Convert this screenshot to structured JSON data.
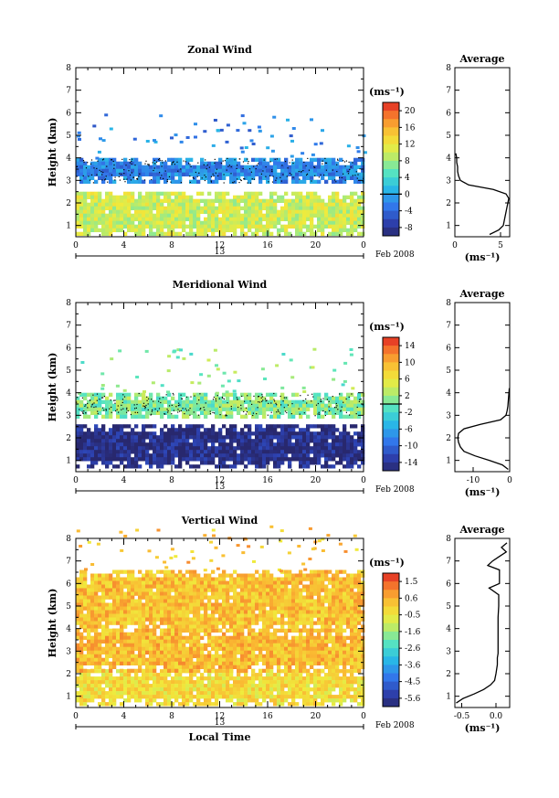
{
  "chart_data": [
    {
      "type": "heatmap",
      "title": "Zonal Wind",
      "xlabel": "",
      "ylabel": "Height (km)",
      "xlim": [
        0,
        24
      ],
      "ylim": [
        0.5,
        8
      ],
      "x_ticks": [
        "0",
        "4",
        "8",
        "12",
        "16",
        "20",
        "0"
      ],
      "y_ticks": [
        "1",
        "2",
        "3",
        "4",
        "5",
        "6",
        "7",
        "8"
      ],
      "date_day": "13",
      "date_month": "Feb 2008",
      "colorbar": {
        "unit": "(ms⁻¹)",
        "range": [
          -10,
          22
        ],
        "ticks": [
          "20",
          "16",
          "12",
          "8",
          "4",
          "0",
          "-4",
          "-8"
        ],
        "zero_line": 0
      },
      "layers": [
        {
          "from_km": 0.7,
          "to_km": 2.5,
          "value_approx": 10
        },
        {
          "from_km": 2.9,
          "to_km": 4.0,
          "value_approx": -2
        }
      ],
      "average_profile": {
        "title": "Average",
        "xlabel": "(ms⁻¹)",
        "x_ticks": [
          "0",
          "5"
        ],
        "xlim": [
          0,
          6
        ],
        "height_km": [
          0.6,
          0.8,
          1.0,
          1.2,
          1.4,
          1.6,
          1.8,
          2.0,
          2.2,
          2.4,
          2.6,
          2.8,
          3.0,
          3.2,
          3.4,
          3.6,
          3.8,
          4.0,
          4.2
        ],
        "mean_wind": [
          3.8,
          4.8,
          5.3,
          5.4,
          5.5,
          5.6,
          5.7,
          5.8,
          5.9,
          5.6,
          4.2,
          1.5,
          0.6,
          0.4,
          0.3,
          0.3,
          0.2,
          0.2,
          0.1
        ]
      }
    },
    {
      "type": "heatmap",
      "title": "Meridional Wind",
      "xlabel": "",
      "ylabel": "Height (km)",
      "xlim": [
        0,
        24
      ],
      "ylim": [
        0.5,
        8
      ],
      "x_ticks": [
        "0",
        "4",
        "8",
        "12",
        "16",
        "20",
        "0"
      ],
      "y_ticks": [
        "1",
        "2",
        "3",
        "4",
        "5",
        "6",
        "7",
        "8"
      ],
      "date_day": "13",
      "date_month": "Feb 2008",
      "colorbar": {
        "unit": "(ms⁻¹)",
        "range": [
          -16,
          16
        ],
        "ticks": [
          "14",
          "10",
          "6",
          "2",
          "-2",
          "-6",
          "-10",
          "-14"
        ],
        "zero_line": 0
      },
      "layers": [
        {
          "from_km": 0.7,
          "to_km": 2.6,
          "value_approx": -15
        },
        {
          "from_km": 3.0,
          "to_km": 4.0,
          "value_approx": 1
        }
      ],
      "average_profile": {
        "title": "Average",
        "xlabel": "(ms⁻¹)",
        "x_ticks": [
          "-10",
          "0"
        ],
        "xlim": [
          -15,
          0
        ],
        "height_km": [
          0.6,
          0.8,
          1.0,
          1.2,
          1.4,
          1.6,
          1.8,
          2.0,
          2.2,
          2.4,
          2.6,
          2.8,
          3.0,
          3.2,
          3.4,
          3.6,
          3.8,
          4.0,
          4.2
        ],
        "mean_wind": [
          -0.4,
          -2.0,
          -5.5,
          -9.5,
          -12.5,
          -13.5,
          -14.0,
          -14.2,
          -14.0,
          -12.5,
          -8.0,
          -2.5,
          -1.0,
          -0.7,
          -0.5,
          -0.4,
          -0.3,
          -0.2,
          -0.1
        ]
      }
    },
    {
      "type": "heatmap",
      "title": "Vertical Wind",
      "xlabel": "Local Time",
      "ylabel": "Height (km)",
      "xlim": [
        0,
        24
      ],
      "ylim": [
        0.5,
        8
      ],
      "x_ticks": [
        "0",
        "4",
        "8",
        "12",
        "16",
        "20",
        "0"
      ],
      "y_ticks": [
        "1",
        "2",
        "3",
        "4",
        "5",
        "6",
        "7",
        "8"
      ],
      "date_day": "13",
      "date_month": "Feb 2008",
      "colorbar": {
        "unit": "(ms⁻¹)",
        "range": [
          -6.0,
          2.0
        ],
        "ticks": [
          "1.5",
          "0.6",
          "-0.5",
          "-1.6",
          "-2.6",
          "-3.6",
          "-4.5",
          "-5.6"
        ],
        "zero_line": null
      },
      "layers": [
        {
          "from_km": 0.7,
          "to_km": 2.2,
          "value_approx": -0.3
        },
        {
          "from_km": 2.2,
          "to_km": 4.0,
          "value_approx": 0.3
        },
        {
          "from_km": 4.0,
          "to_km": 6.6,
          "value_approx": 0.2
        }
      ],
      "average_profile": {
        "title": "Average",
        "xlabel": "(ms⁻¹)",
        "x_ticks": [
          "-0.5",
          "0.0"
        ],
        "xlim": [
          -0.6,
          0.2
        ],
        "height_km": [
          0.7,
          0.9,
          1.1,
          1.3,
          1.5,
          1.7,
          2.0,
          2.4,
          2.7,
          2.9,
          3.2,
          3.6,
          4.0,
          4.5,
          5.0,
          5.5,
          5.8,
          6.0,
          6.3,
          6.6,
          6.8,
          7.0,
          7.2,
          7.4,
          7.6,
          7.8
        ],
        "mean_wind": [
          -0.58,
          -0.48,
          -0.32,
          -0.18,
          -0.08,
          -0.02,
          0.0,
          0.02,
          0.02,
          0.03,
          0.03,
          0.03,
          0.03,
          0.03,
          0.04,
          0.04,
          -0.1,
          0.05,
          0.05,
          0.05,
          -0.12,
          -0.05,
          0.05,
          0.15,
          0.08,
          0.16
        ]
      }
    }
  ]
}
